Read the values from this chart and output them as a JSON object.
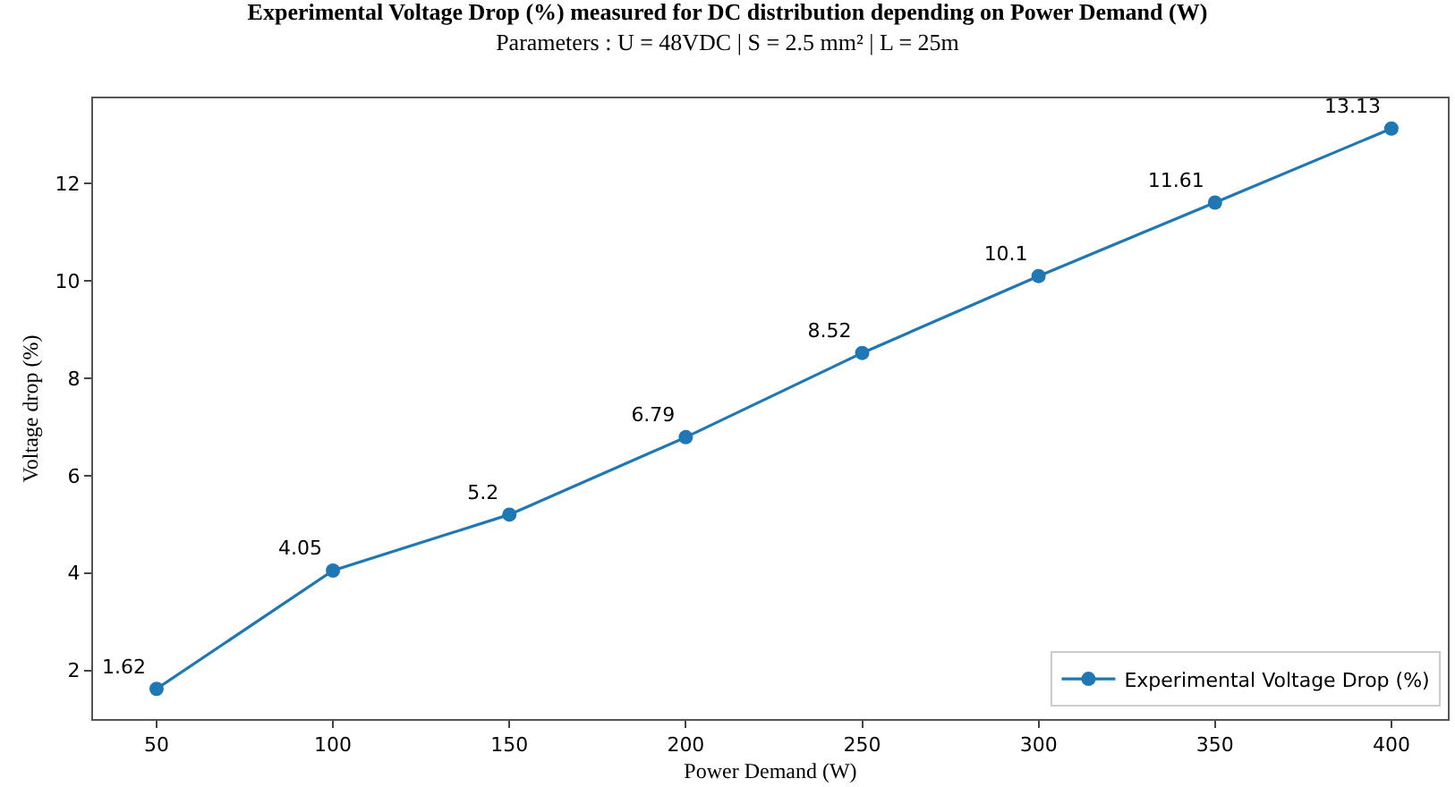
{
  "chart_data": {
    "type": "line",
    "title": "Experimental Voltage Drop (%) measured for DC distribution depending on Power Demand (W)",
    "subtitle": "Parameters : U = 48VDC | S = 2.5 mm² | L = 25m",
    "xlabel": "Power Demand (W)",
    "ylabel": "Voltage drop (%)",
    "x": [
      50,
      100,
      150,
      200,
      250,
      300,
      350,
      400
    ],
    "series": [
      {
        "name": "Experimental Voltage Drop (%)",
        "color": "#1f77b4",
        "values": [
          1.62,
          4.05,
          5.2,
          6.79,
          8.52,
          10.1,
          11.61,
          13.13
        ]
      }
    ],
    "xlim": [
      32,
      416
    ],
    "xticks": [
      50,
      100,
      150,
      200,
      250,
      300,
      350,
      400
    ],
    "ylim": [
      1.0,
      13.75
    ],
    "yticks": [
      2,
      4,
      6,
      8,
      10,
      12
    ],
    "data_labels": true,
    "marker": "circle",
    "line_style": "solid",
    "legend": "bottom right"
  }
}
